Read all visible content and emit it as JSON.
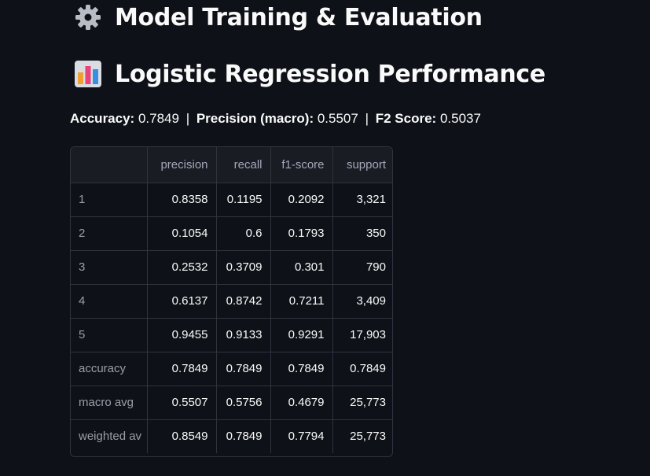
{
  "header": {
    "title": "Model Training & Evaluation",
    "title_icon": "gear-icon"
  },
  "section": {
    "title": "Logistic Regression Performance",
    "title_icon": "bar-chart-icon"
  },
  "metrics": {
    "accuracy_label": "Accuracy:",
    "accuracy_value": "0.7849",
    "precision_label": "Precision (macro):",
    "precision_value": "0.5507",
    "f2_label": "F2 Score:",
    "f2_value": "0.5037",
    "separator": "|"
  },
  "report_table": {
    "columns": [
      "",
      "precision",
      "recall",
      "f1-score",
      "support"
    ],
    "rows": [
      {
        "label": "1",
        "precision": "0.8358",
        "recall": "0.1195",
        "f1": "0.2092",
        "support": "3,321"
      },
      {
        "label": "2",
        "precision": "0.1054",
        "recall": "0.6",
        "f1": "0.1793",
        "support": "350"
      },
      {
        "label": "3",
        "precision": "0.2532",
        "recall": "0.3709",
        "f1": "0.301",
        "support": "790"
      },
      {
        "label": "4",
        "precision": "0.6137",
        "recall": "0.8742",
        "f1": "0.7211",
        "support": "3,409"
      },
      {
        "label": "5",
        "precision": "0.9455",
        "recall": "0.9133",
        "f1": "0.9291",
        "support": "17,903"
      },
      {
        "label": "accuracy",
        "precision": "0.7849",
        "recall": "0.7849",
        "f1": "0.7849",
        "support": "0.7849"
      },
      {
        "label": "macro avg",
        "precision": "0.5507",
        "recall": "0.5756",
        "f1": "0.4679",
        "support": "25,773"
      },
      {
        "label": "weighted av",
        "precision": "0.8549",
        "recall": "0.7849",
        "f1": "0.7794",
        "support": "25,773"
      }
    ]
  },
  "colors": {
    "background": "#0e1117",
    "text": "#fafafa",
    "muted": "#a3a8b8",
    "border": "#31333f"
  }
}
